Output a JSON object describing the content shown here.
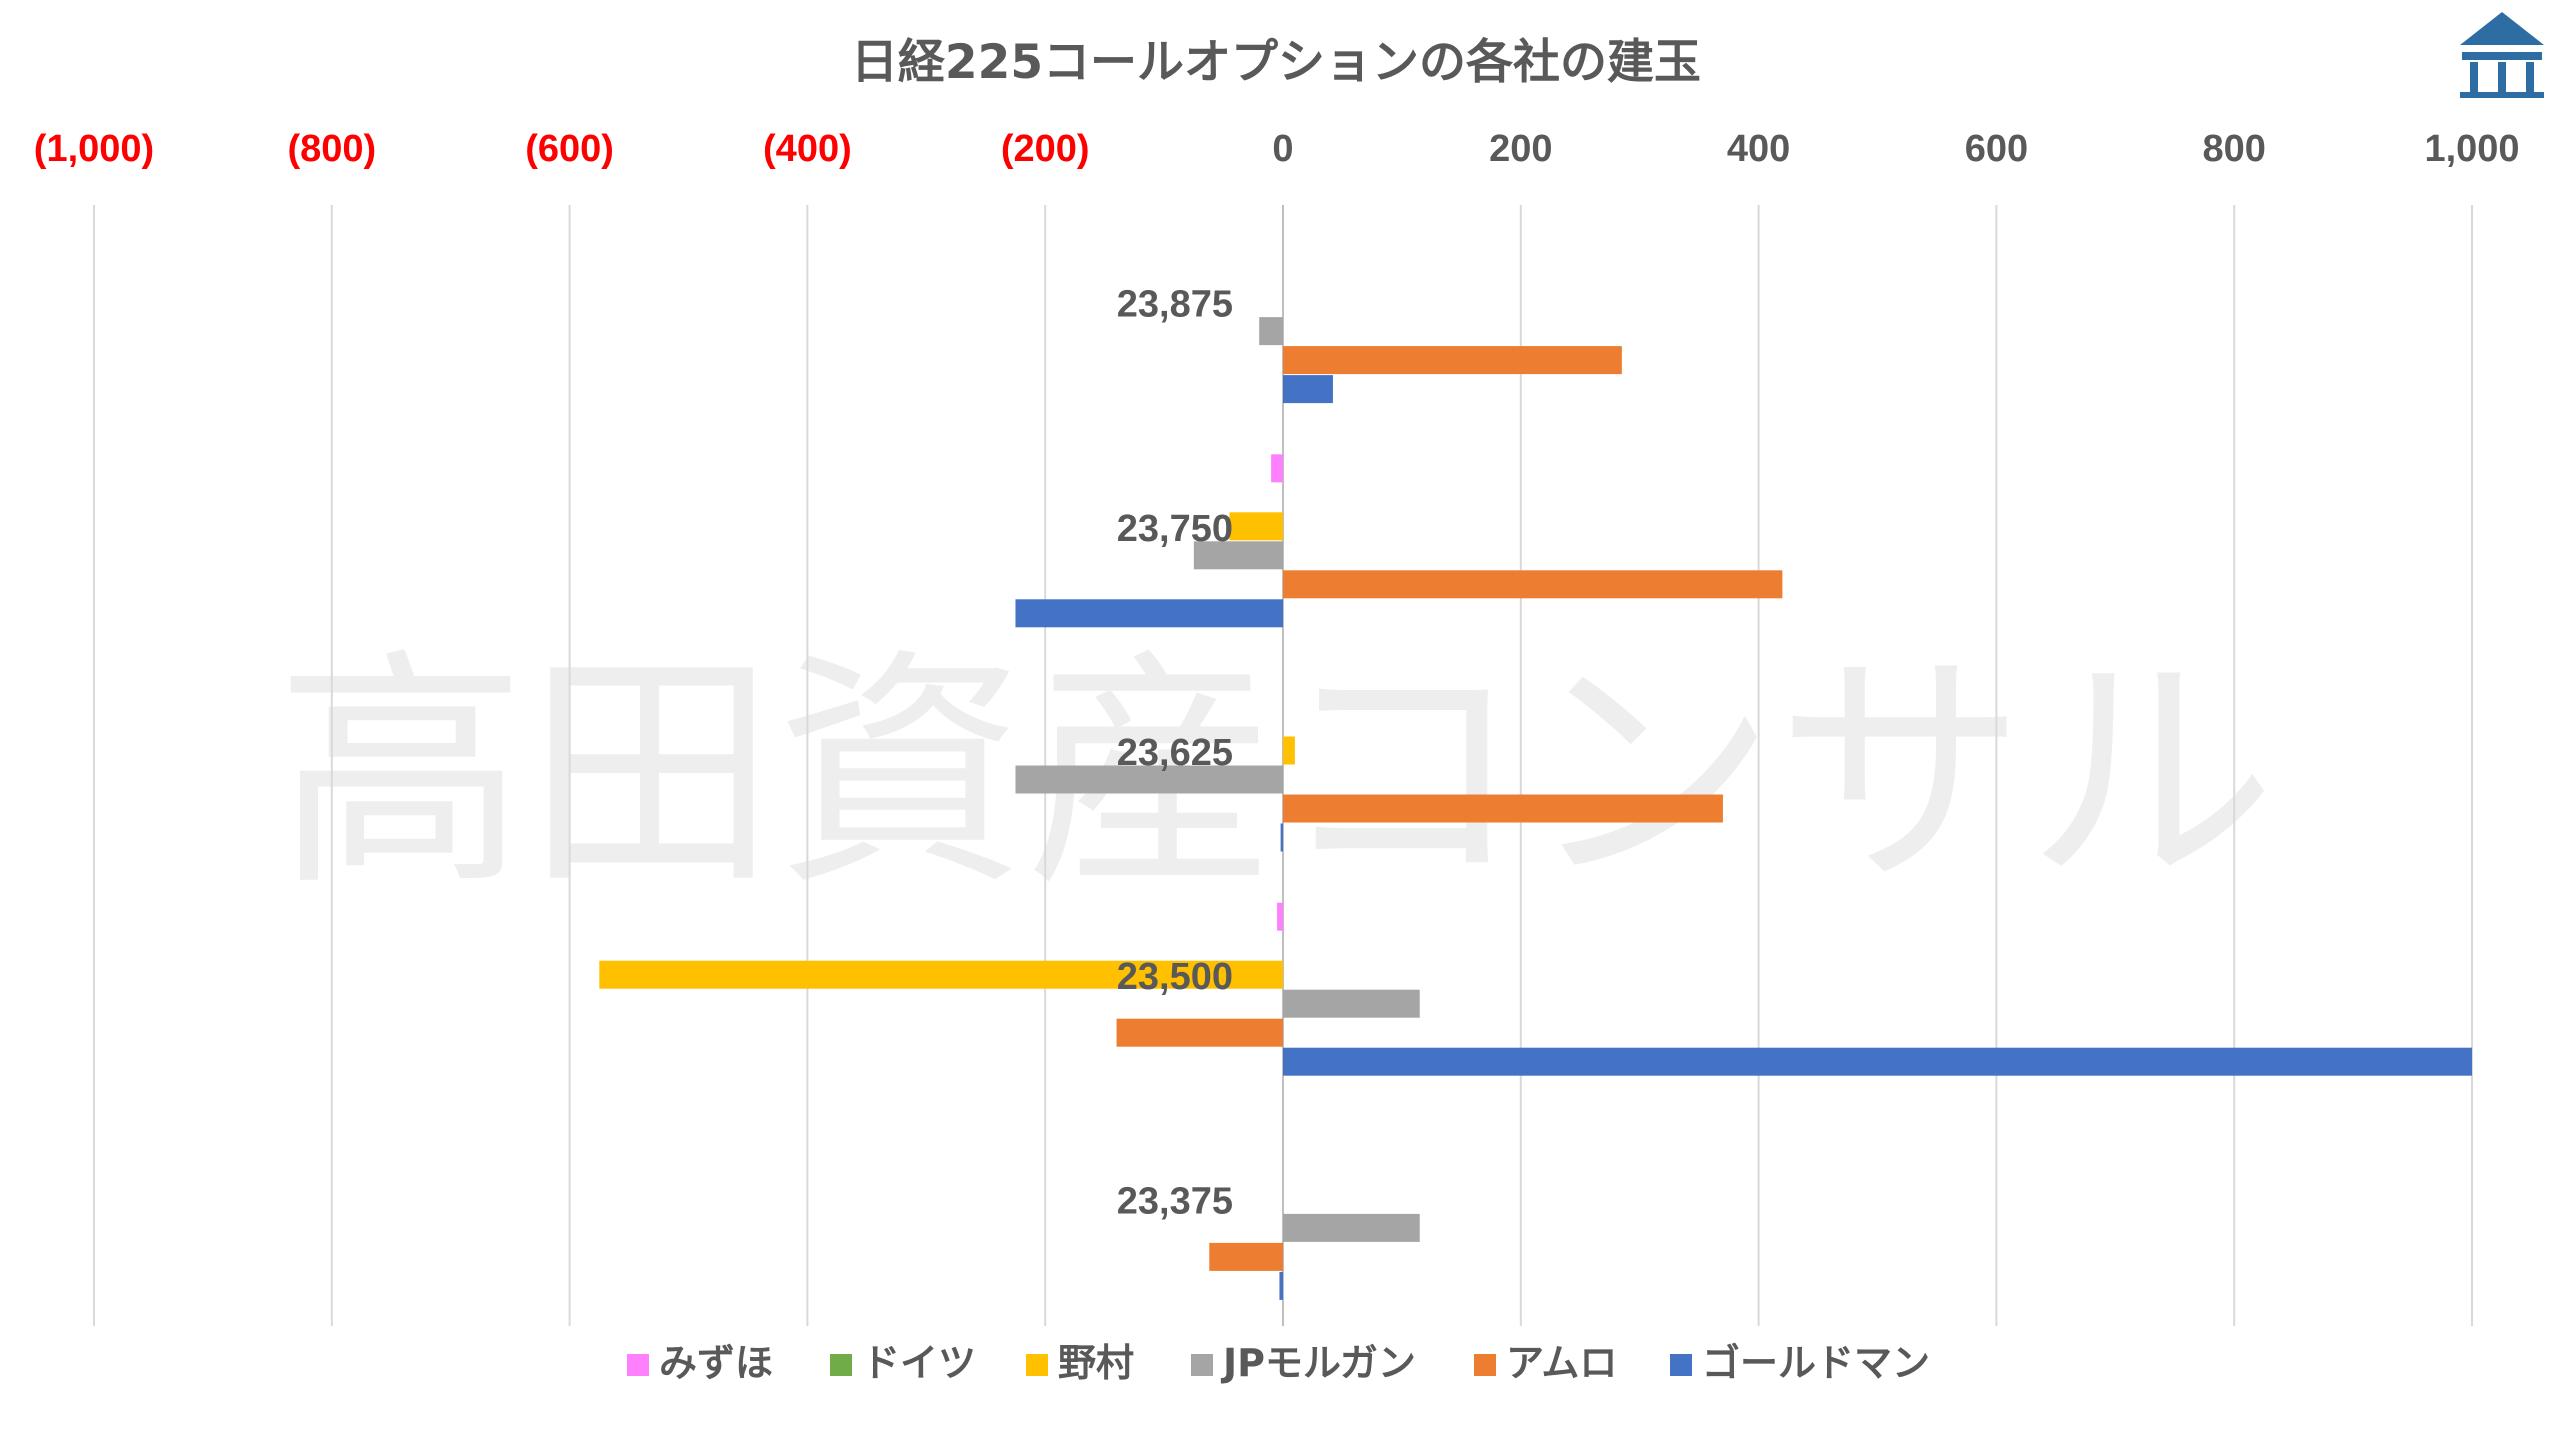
{
  "watermark": "高田資産コンサル",
  "colors": {
    "grid": "#d9d9d9",
    "axis_text": "#595959",
    "negative_tick": "#ff0000",
    "logo": "#2e6da4"
  },
  "chart_data": {
    "type": "bar",
    "orientation": "horizontal",
    "title": "日経225コールオプションの各社の建玉",
    "xlim": [
      -1000,
      1000
    ],
    "x_ticks": [
      -1000,
      -800,
      -600,
      -400,
      -200,
      0,
      200,
      400,
      600,
      800,
      1000
    ],
    "x_tick_labels": [
      "(1,000)",
      "(800)",
      "(600)",
      "(400)",
      "(200)",
      "0",
      "200",
      "400",
      "600",
      "800",
      "1,000"
    ],
    "x_axis_position": "top",
    "grid": true,
    "legend_position": "bottom",
    "categories": [
      "23,875",
      "23,750",
      "23,625",
      "23,500",
      "23,375"
    ],
    "series": [
      {
        "name": "みずほ",
        "color": "#ff80ff",
        "values": [
          0,
          -10,
          0,
          -5,
          0
        ]
      },
      {
        "name": "ドイツ",
        "color": "#70ad47",
        "values": [
          0,
          0,
          0,
          0,
          0
        ]
      },
      {
        "name": "野村",
        "color": "#ffc000",
        "values": [
          0,
          -45,
          10,
          -575,
          0
        ]
      },
      {
        "name": "JPモルガン",
        "color": "#a5a5a5",
        "values": [
          -20,
          -75,
          -225,
          115,
          115
        ]
      },
      {
        "name": "アムロ",
        "color": "#ed7d31",
        "values": [
          285,
          420,
          370,
          -140,
          -62
        ]
      },
      {
        "name": "ゴールドマン",
        "color": "#4472c4",
        "values": [
          42,
          -225,
          -2,
          1000,
          -3
        ]
      }
    ]
  }
}
